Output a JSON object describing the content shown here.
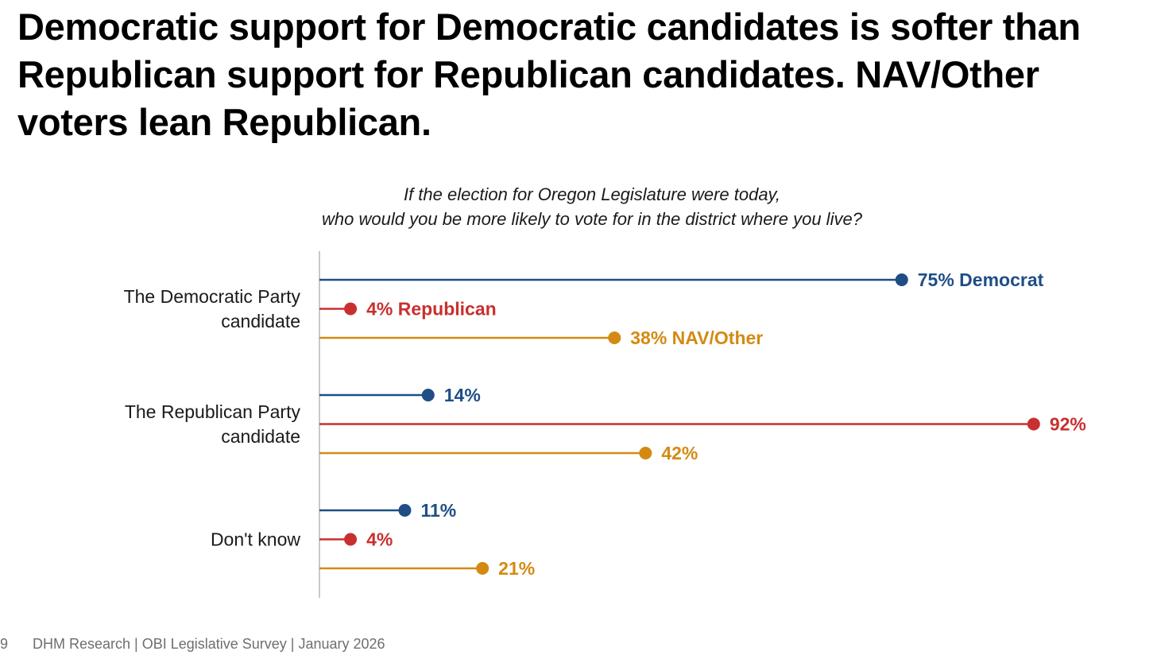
{
  "title": "Democratic support for Democratic candidates is softer than Republican support for Republican candidates. NAV/Other voters lean Republican.",
  "footer": {
    "page_number": "9",
    "source": "DHM Research | OBI Legislative Survey | January 2026"
  },
  "colors": {
    "democrat": "#1f4e86",
    "republican": "#c8302f",
    "nav_other": "#d48a12",
    "axis": "#b5b5b5"
  },
  "chart_data": {
    "type": "lollipop",
    "subtitle": [
      "If the election for Oregon Legislature were today,",
      "who would you be more likely to vote for in the district where you live?"
    ],
    "xlim": [
      0,
      100
    ],
    "categories": [
      [
        "The Democratic Party",
        "candidate"
      ],
      [
        "The Republican Party",
        "candidate"
      ],
      [
        "Don't know"
      ]
    ],
    "series": [
      {
        "name": "Democrat",
        "color": "#1f4e86",
        "values": [
          75,
          14,
          11
        ]
      },
      {
        "name": "Republican",
        "color": "#c8302f",
        "values": [
          4,
          92,
          4
        ]
      },
      {
        "name": "NAV/Other",
        "color": "#d48a12",
        "values": [
          38,
          42,
          21
        ]
      }
    ],
    "data_labels": [
      [
        "75% Democrat",
        "14%",
        "11%"
      ],
      [
        "4% Republican",
        "92%",
        "4%"
      ],
      [
        "38% NAV/Other",
        "42%",
        "21%"
      ]
    ]
  }
}
